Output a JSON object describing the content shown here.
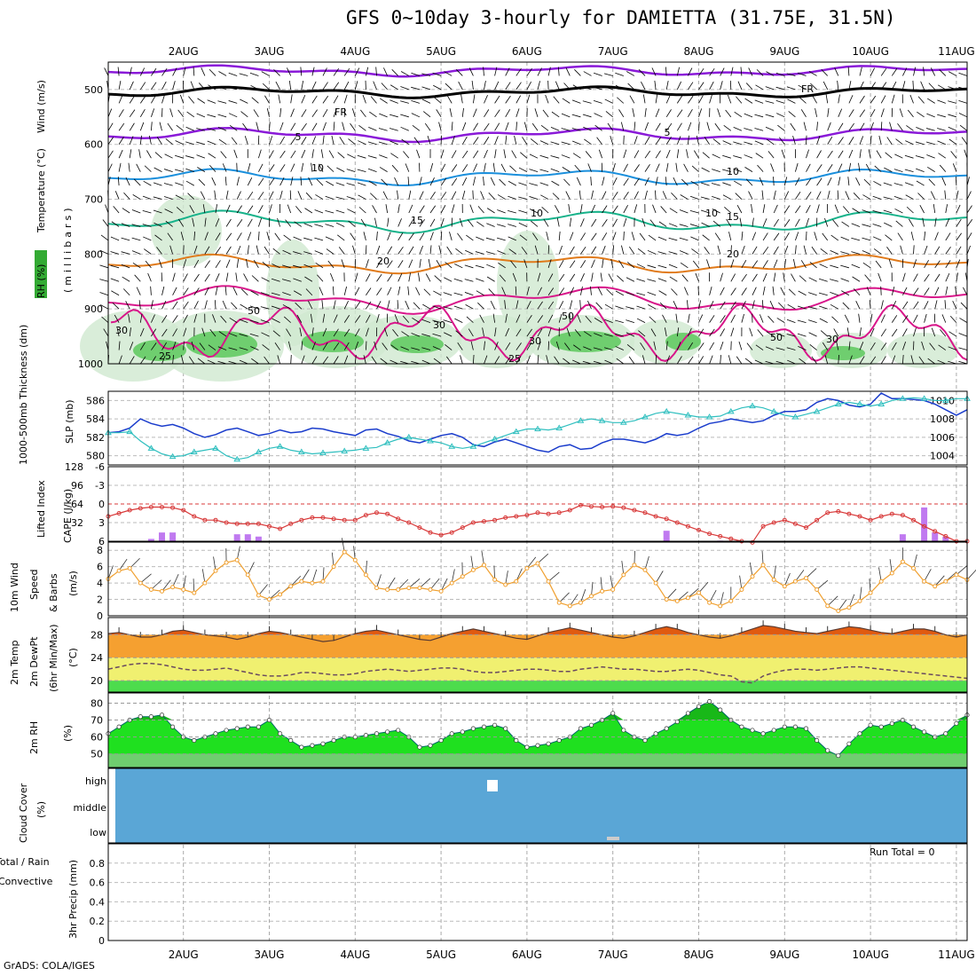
{
  "title": "GFS 0~10day 3-hourly for DAMIETTA (31.75E, 31.5N)",
  "footer": "GrADS: COLA/IGES",
  "dates": [
    "2AUG",
    "3AUG",
    "4AUG",
    "5AUG",
    "6AUG",
    "7AUG",
    "8AUG",
    "9AUG",
    "10AUG",
    "11AUG"
  ],
  "colors": {
    "purple": "#8a1ad8",
    "blue": "#1a8fdc",
    "teal": "#17b28a",
    "orange": "#e07a1a",
    "magenta": "#d8168a",
    "slp": "#1a3ccc",
    "thick": "#2fbfbf",
    "li": "#d83a3a",
    "cape": "#c07af0",
    "wind": "#f0a030",
    "cloud": "#5aa6d6"
  },
  "panels": {
    "upper": {
      "labels": {
        "rh": "RH (%)",
        "temp": "Temperature (°C)",
        "wind": "Wind (m/s)",
        "mb": "(millibars)"
      },
      "yticks": [
        "500",
        "600",
        "700",
        "800",
        "900",
        "1000"
      ],
      "contour_labels": [
        "FR",
        "FR",
        "5",
        "5",
        "10",
        "10",
        "15",
        "15",
        "20",
        "20",
        "25",
        "25"
      ],
      "rh_labels": [
        "10",
        "10",
        "30",
        "50",
        "30",
        "30",
        "50",
        "50",
        "30"
      ]
    },
    "slp": {
      "labels": {
        "thick": "1000-500mb Thickness (dm)",
        "slp": "SLP (mb)"
      },
      "left_ticks": [
        "586",
        "584",
        "582",
        "580"
      ],
      "right_ticks": [
        "1010",
        "1008",
        "1006",
        "1004"
      ]
    },
    "cape": {
      "labels": {
        "li": "Lifted Index",
        "cape": "CAPE (J/kg)"
      },
      "left_ticks": [
        "-6",
        "-3",
        "0",
        "3",
        "6"
      ],
      "right_ticks": [
        "128",
        "96",
        "64",
        "32"
      ]
    },
    "wind": {
      "labels": {
        "a": "10m Wind",
        "b": "Speed",
        "c": "& Barbs",
        "d": "(m/s)"
      },
      "yticks": [
        "8",
        "6",
        "4",
        "2",
        "0"
      ]
    },
    "temp": {
      "labels": {
        "a": "2m Temp",
        "b": "2m DewPt",
        "c": "(6hr Min/Max)",
        "d": "(°C)"
      },
      "yticks": [
        "28",
        "24",
        "20"
      ]
    },
    "rh": {
      "labels": {
        "a": "2m RH",
        "b": "(%)"
      },
      "yticks": [
        "80",
        "70",
        "60",
        "50"
      ]
    },
    "cloud": {
      "labels": {
        "a": "Cloud Cover",
        "b": "(%)"
      },
      "yticks": [
        "high",
        "middle",
        "low"
      ]
    },
    "precip": {
      "labels": {
        "a": "Total / Rain",
        "b": "Convective",
        "c": "3hr Precip (mm)"
      },
      "yticks": [
        "0.8",
        "0.6",
        "0.4",
        "0.2",
        "0"
      ],
      "run_total": "Run Total = 0"
    }
  },
  "chart_data": [
    {
      "type": "line",
      "name": "slp",
      "x": "3-hourly steps 0..80",
      "series": [
        {
          "name": "SLP (mb)",
          "values": [
            1006.5,
            1006.6,
            1007.0,
            1008.0,
            1007.5,
            1007.2,
            1007.4,
            1007.0,
            1006.4,
            1006.0,
            1006.3,
            1006.8,
            1007.0,
            1006.6,
            1006.2,
            1006.4,
            1006.8,
            1006.5,
            1006.6,
            1007.0,
            1006.9,
            1006.6,
            1006.4,
            1006.2,
            1006.8,
            1006.9,
            1006.4,
            1006.1,
            1005.6,
            1005.4,
            1005.8,
            1006.2,
            1006.4,
            1006.0,
            1005.2,
            1005.0,
            1005.5,
            1005.8,
            1005.4,
            1005.0,
            1004.6,
            1004.4,
            1005.0,
            1005.2,
            1004.7,
            1004.8,
            1005.4,
            1005.8,
            1005.8,
            1005.6,
            1005.4,
            1005.8,
            1006.4,
            1006.2,
            1006.4,
            1007.0,
            1007.5,
            1007.7,
            1008.0,
            1007.8,
            1007.6,
            1007.8,
            1008.4,
            1008.8,
            1008.8,
            1009.0,
            1009.8,
            1010.2,
            1010.0,
            1009.5,
            1009.3,
            1009.6,
            1010.8,
            1010.2,
            1010.2,
            1010.1,
            1010.0,
            1009.6,
            1009.0,
            1008.4,
            1009.0
          ]
        },
        {
          "name": "1000-500mb Thickness (dm)",
          "values": [
            582.5,
            582.5,
            582.6,
            581.6,
            580.8,
            580.2,
            579.9,
            580.0,
            580.4,
            580.6,
            580.8,
            580.0,
            579.6,
            579.8,
            580.4,
            580.8,
            581.0,
            580.6,
            580.4,
            580.2,
            580.3,
            580.4,
            580.5,
            580.6,
            580.8,
            580.9,
            581.4,
            581.8,
            582.0,
            581.8,
            581.6,
            581.4,
            581.0,
            580.8,
            581.0,
            581.4,
            581.8,
            582.2,
            582.6,
            582.9,
            582.9,
            582.8,
            583.0,
            583.4,
            583.8,
            584.0,
            583.8,
            583.6,
            583.6,
            583.8,
            584.2,
            584.6,
            584.8,
            584.6,
            584.4,
            584.2,
            584.2,
            584.3,
            584.8,
            585.2,
            585.4,
            585.2,
            584.8,
            584.4,
            584.2,
            584.5,
            584.8,
            585.2,
            585.6,
            585.8,
            585.6,
            585.4,
            585.6,
            586.0,
            586.2,
            586.3,
            586.2,
            586.0,
            586.0,
            586.2,
            586.2
          ]
        }
      ]
    },
    {
      "type": "line",
      "name": "lifted-index",
      "series": [
        {
          "name": "Lifted Index",
          "values": [
            2.0,
            1.5,
            1.0,
            0.7,
            0.5,
            0.5,
            0.6,
            1.0,
            2.0,
            2.6,
            2.6,
            3.0,
            3.2,
            3.2,
            3.2,
            3.6,
            4.0,
            3.2,
            2.6,
            2.2,
            2.2,
            2.4,
            2.6,
            2.6,
            1.8,
            1.4,
            1.6,
            2.4,
            3.0,
            3.8,
            4.6,
            5.0,
            4.6,
            3.8,
            3.0,
            2.8,
            2.6,
            2.2,
            2.0,
            1.8,
            1.4,
            1.6,
            1.4,
            1.0,
            0.2,
            0.4,
            0.5,
            0.4,
            0.6,
            1.0,
            1.4,
            2.0,
            2.4,
            3.0,
            3.6,
            4.2,
            4.8,
            5.2,
            5.6,
            6.0,
            6.2,
            3.6,
            3.0,
            2.6,
            3.2,
            3.8,
            2.6,
            1.4,
            1.2,
            1.6,
            2.0,
            2.6,
            2.0,
            1.6,
            1.8,
            2.6,
            3.6,
            4.4,
            5.2,
            6.0,
            6.0
          ]
        }
      ]
    },
    {
      "type": "bar",
      "name": "cape",
      "series": [
        {
          "name": "CAPE (J/kg)",
          "values": [
            0,
            0,
            0,
            0,
            4,
            15,
            15,
            0,
            0,
            0,
            0,
            0,
            12,
            12,
            8,
            0,
            0,
            0,
            0,
            0,
            0,
            0,
            0,
            0,
            0,
            0,
            0,
            0,
            0,
            0,
            0,
            0,
            0,
            0,
            0,
            0,
            0,
            0,
            0,
            0,
            0,
            0,
            0,
            0,
            0,
            0,
            0,
            0,
            0,
            0,
            0,
            0,
            18,
            0,
            0,
            0,
            0,
            1,
            0,
            0,
            0,
            0,
            0,
            0,
            0,
            0,
            0,
            0,
            0,
            0,
            0,
            0,
            0,
            0,
            12,
            0,
            58,
            15,
            8,
            0,
            0
          ]
        }
      ]
    },
    {
      "type": "line",
      "name": "wind-speed",
      "series": [
        {
          "name": "Speed (m/s)",
          "values": [
            4.5,
            5.5,
            5.8,
            4.0,
            3.2,
            3.0,
            3.5,
            3.2,
            2.8,
            4.0,
            5.5,
            6.5,
            6.8,
            5.0,
            2.5,
            2.0,
            2.6,
            3.6,
            4.2,
            4.0,
            4.2,
            6.0,
            7.8,
            6.8,
            5.0,
            3.4,
            3.2,
            3.2,
            3.4,
            3.4,
            3.2,
            3.0,
            4.0,
            4.8,
            5.6,
            6.2,
            4.4,
            3.8,
            4.2,
            5.8,
            6.4,
            4.2,
            1.6,
            1.2,
            1.6,
            2.4,
            3.0,
            3.2,
            5.0,
            6.2,
            5.6,
            4.0,
            2.0,
            1.8,
            2.2,
            2.8,
            1.6,
            1.2,
            1.8,
            3.2,
            4.8,
            6.2,
            4.4,
            3.6,
            4.2,
            4.6,
            3.2,
            1.2,
            0.6,
            1.0,
            1.8,
            2.8,
            4.2,
            5.2,
            6.6,
            5.8,
            4.2,
            3.6,
            4.2,
            5.0,
            4.4
          ]
        }
      ]
    },
    {
      "type": "area",
      "name": "temperature",
      "series": [
        {
          "name": "2m Temp (°C)",
          "values": [
            28.2,
            28.4,
            28.0,
            27.6,
            27.6,
            28.0,
            28.6,
            28.8,
            28.4,
            28.0,
            27.8,
            27.6,
            27.2,
            27.6,
            28.2,
            28.6,
            28.4,
            28.0,
            27.6,
            27.2,
            26.8,
            27.0,
            27.6,
            28.2,
            28.6,
            28.8,
            28.4,
            28.0,
            27.6,
            27.2,
            27.0,
            27.6,
            28.2,
            28.6,
            29.0,
            28.6,
            28.2,
            27.8,
            27.4,
            27.2,
            27.8,
            28.4,
            28.8,
            29.2,
            28.8,
            28.4,
            28.0,
            27.6,
            27.4,
            27.8,
            28.4,
            29.0,
            29.4,
            29.0,
            28.4,
            28.0,
            27.6,
            27.4,
            27.8,
            28.4,
            29.0,
            29.6,
            29.4,
            29.0,
            28.6,
            28.4,
            28.2,
            28.6,
            29.0,
            29.4,
            29.2,
            28.8,
            28.4,
            28.2,
            28.6,
            29.0,
            29.0,
            28.6,
            28.0,
            27.6,
            28.0
          ]
        },
        {
          "name": "2m DewPt (°C)",
          "values": [
            22.0,
            22.4,
            22.8,
            23.0,
            23.0,
            22.8,
            22.4,
            22.0,
            21.8,
            21.8,
            22.0,
            22.2,
            21.8,
            21.4,
            21.0,
            20.8,
            20.8,
            21.0,
            21.4,
            21.4,
            21.2,
            21.0,
            21.0,
            21.2,
            21.6,
            21.8,
            22.0,
            21.8,
            21.6,
            21.8,
            22.0,
            22.2,
            22.2,
            22.0,
            21.6,
            21.4,
            21.4,
            21.6,
            21.8,
            22.0,
            22.0,
            21.8,
            21.6,
            21.6,
            22.0,
            22.2,
            22.4,
            22.2,
            22.0,
            22.0,
            21.8,
            21.6,
            21.6,
            21.8,
            22.0,
            21.8,
            21.4,
            21.0,
            20.8,
            19.8,
            19.6,
            20.8,
            21.4,
            21.8,
            22.0,
            22.0,
            21.8,
            22.0,
            22.2,
            22.4,
            22.4,
            22.2,
            22.0,
            21.8,
            21.6,
            21.4,
            21.2,
            21.0,
            20.8,
            20.6,
            20.4
          ]
        }
      ]
    },
    {
      "type": "area",
      "name": "rh",
      "series": [
        {
          "name": "2m RH (%)",
          "values": [
            62,
            66,
            70,
            72,
            72,
            73,
            66,
            60,
            58,
            60,
            62,
            64,
            65,
            66,
            66,
            70,
            62,
            58,
            54,
            55,
            56,
            58,
            60,
            60,
            61,
            62,
            63,
            64,
            60,
            54,
            55,
            58,
            62,
            63,
            65,
            66,
            67,
            65,
            58,
            54,
            55,
            56,
            58,
            60,
            65,
            67,
            70,
            74,
            64,
            60,
            58,
            62,
            65,
            69,
            74,
            78,
            81,
            76,
            70,
            66,
            64,
            62,
            64,
            66,
            66,
            65,
            58,
            52,
            49,
            56,
            62,
            67,
            66,
            68,
            70,
            66,
            63,
            60,
            62,
            68,
            73
          ]
        }
      ]
    },
    {
      "type": "table",
      "name": "cloud-cover",
      "levels": [
        "high",
        "middle",
        "low"
      ],
      "note": "cloud cover ~0 % throughout"
    },
    {
      "type": "bar",
      "name": "precip",
      "series": [
        {
          "name": "3hr Precip (mm)",
          "values": []
        }
      ],
      "ylim": [
        0,
        1
      ],
      "run_total": "Run Total = 0"
    }
  ]
}
